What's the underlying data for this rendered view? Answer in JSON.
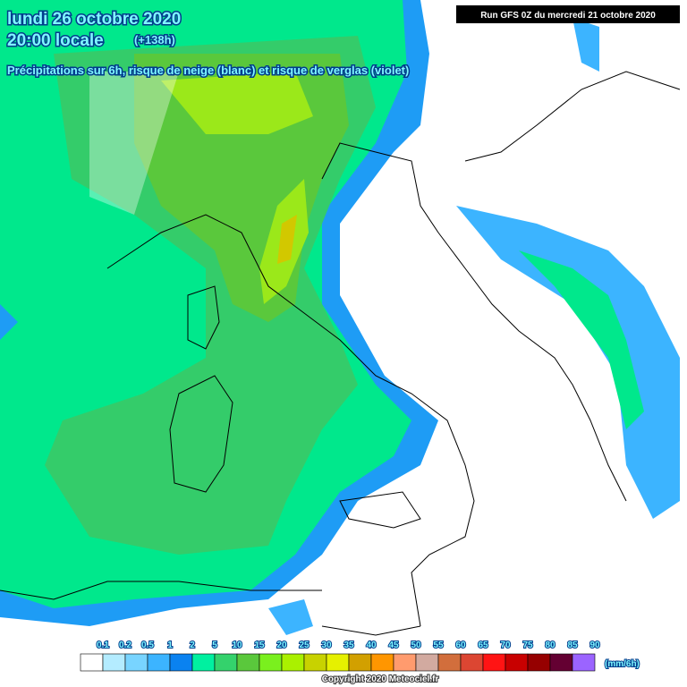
{
  "header": {
    "date": "lundi 26 octobre 2020",
    "time": "20:00 locale",
    "lead": "(+138h)",
    "subtitle": "Précipitations sur 6h, risque de neige (blanc) et risque de verglas (violet)",
    "run": "Run GFS 0Z du mercredi 21 octobre 2020"
  },
  "legend": {
    "labels": [
      "0.1",
      "0.2",
      "0.5",
      "1",
      "2",
      "5",
      "10",
      "15",
      "20",
      "25",
      "30",
      "35",
      "40",
      "45",
      "50",
      "55",
      "60",
      "65",
      "70",
      "75",
      "80",
      "85",
      "90"
    ],
    "colors": [
      "#ffffff",
      "#b4ecff",
      "#78d4ff",
      "#3cb4ff",
      "#0a82f0",
      "#00f0a0",
      "#34d26c",
      "#5ac83c",
      "#7af01e",
      "#aaf000",
      "#c8d200",
      "#e6f000",
      "#d2a000",
      "#ff9600",
      "#ff9b6e",
      "#d2aaa0",
      "#d26e3c",
      "#dc4632",
      "#ff1414",
      "#c80000",
      "#960000",
      "#640032",
      "#9b64ff"
    ],
    "unit": "(mm/6h)"
  },
  "footer": {
    "copyright": "Copyright 2020 Meteociel.fr"
  }
}
